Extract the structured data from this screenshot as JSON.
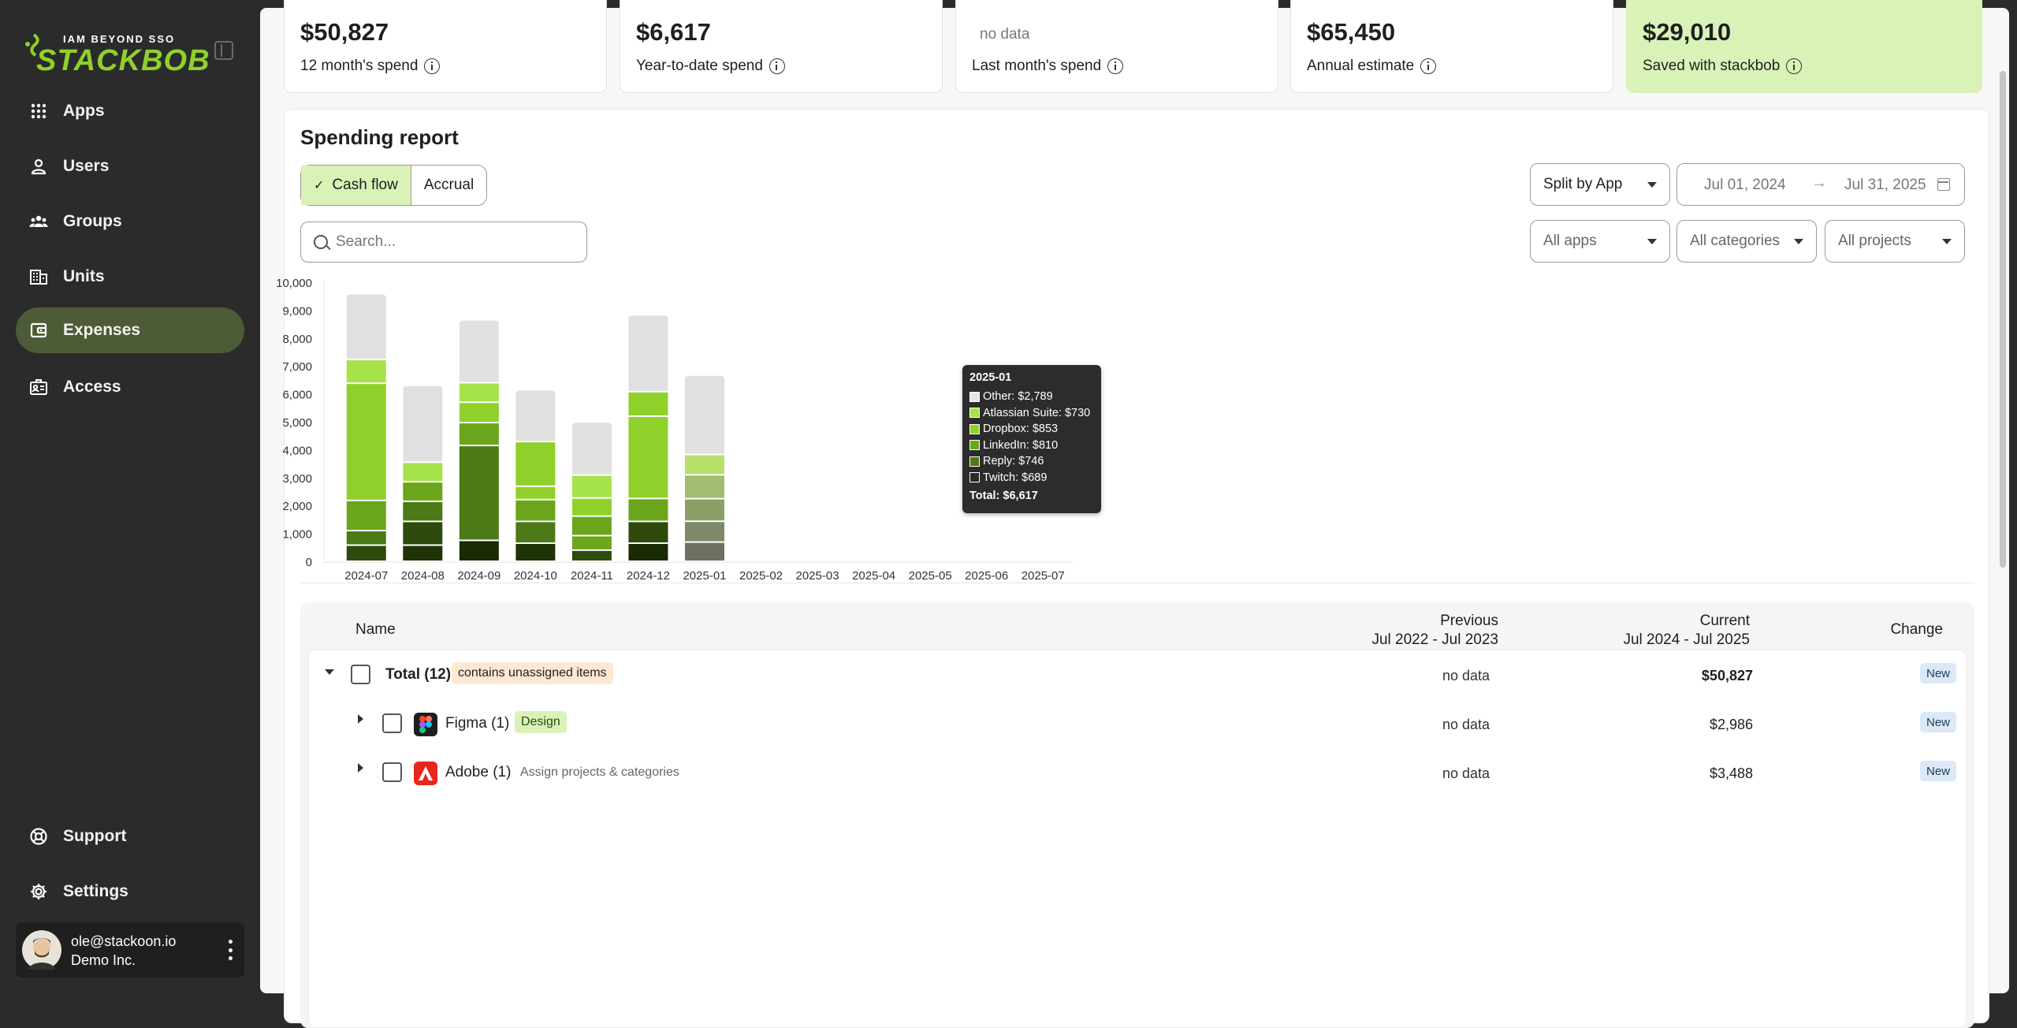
{
  "brand": {
    "tagline": "IAM BEYOND SSO",
    "name": "STACKBOB",
    "accent": "#8fd12a"
  },
  "nav": [
    {
      "label": "Apps",
      "icon": "apps-grid-icon"
    },
    {
      "label": "Users",
      "icon": "user-icon"
    },
    {
      "label": "Groups",
      "icon": "groups-icon"
    },
    {
      "label": "Units",
      "icon": "building-icon"
    },
    {
      "label": "Expenses",
      "icon": "wallet-icon",
      "active": true
    },
    {
      "label": "Access",
      "icon": "badge-icon"
    }
  ],
  "nav_bottom": [
    {
      "label": "Support",
      "icon": "lifebuoy-icon"
    },
    {
      "label": "Settings",
      "icon": "gear-icon"
    }
  ],
  "user": {
    "email": "ole@stackoon.io",
    "org": "Demo Inc."
  },
  "stats": [
    {
      "value": "$50,827",
      "label": "12 month's spend"
    },
    {
      "value": "$6,617",
      "label": "Year-to-date spend"
    },
    {
      "value": "no data",
      "label": "Last month's spend"
    },
    {
      "value": "$65,450",
      "label": "Annual estimate"
    },
    {
      "value": "$29,010",
      "label": "Saved with stackbob"
    }
  ],
  "report": {
    "title": "Spending report",
    "toggle": {
      "cashflow": "Cash flow",
      "accrual": "Accrual"
    },
    "search_placeholder": "Search...",
    "split": "Split by App",
    "date_from": "Jul 01, 2024",
    "date_to": "Jul 31, 2025",
    "filters": {
      "apps": "All apps",
      "categories": "All categories",
      "projects": "All projects"
    }
  },
  "chart_data": {
    "type": "bar",
    "stacked": true,
    "categories": [
      "2024-07",
      "2024-08",
      "2024-09",
      "2024-10",
      "2024-11",
      "2024-12",
      "2025-01",
      "2025-02",
      "2025-03",
      "2025-04",
      "2025-05",
      "2025-06",
      "2025-07"
    ],
    "ylim": [
      0,
      10000
    ],
    "yticks": [
      "0",
      "1,000",
      "2,000",
      "3,000",
      "4,000",
      "5,000",
      "6,000",
      "7,000",
      "8,000",
      "9,000",
      "10,000"
    ],
    "bars": [
      [
        {
          "v": 580,
          "c": "#2e4a0c"
        },
        {
          "v": 520,
          "c": "#4b7a16"
        },
        {
          "v": 1080,
          "c": "#6aa51c"
        },
        {
          "v": 4200,
          "c": "#8fd12a"
        },
        {
          "v": 850,
          "c": "#a6e24a"
        },
        {
          "v": 2300,
          "c": "#e0e0e0"
        }
      ],
      [
        {
          "v": 580,
          "c": "#1f3306"
        },
        {
          "v": 850,
          "c": "#2e4a0c"
        },
        {
          "v": 720,
          "c": "#4b7a16"
        },
        {
          "v": 700,
          "c": "#6aa51c"
        },
        {
          "v": 700,
          "c": "#a6e24a"
        },
        {
          "v": 2700,
          "c": "#e0e0e0"
        }
      ],
      [
        {
          "v": 750,
          "c": "#1a2a04"
        },
        {
          "v": 3400,
          "c": "#4b7a16"
        },
        {
          "v": 820,
          "c": "#6aa51c"
        },
        {
          "v": 730,
          "c": "#8fd12a"
        },
        {
          "v": 700,
          "c": "#a6e24a"
        },
        {
          "v": 2200,
          "c": "#e0e0e0"
        }
      ],
      [
        {
          "v": 650,
          "c": "#1f3306"
        },
        {
          "v": 780,
          "c": "#4b7a16"
        },
        {
          "v": 780,
          "c": "#6aa51c"
        },
        {
          "v": 480,
          "c": "#8fd12a"
        },
        {
          "v": 1600,
          "c": "#8fd12a"
        },
        {
          "v": 1800,
          "c": "#e0e0e0"
        }
      ],
      [
        {
          "v": 400,
          "c": "#2e4a0c"
        },
        {
          "v": 520,
          "c": "#6aa51c"
        },
        {
          "v": 700,
          "c": "#6aa51c"
        },
        {
          "v": 650,
          "c": "#8fd12a"
        },
        {
          "v": 820,
          "c": "#a6e24a"
        },
        {
          "v": 1850,
          "c": "#e0e0e0"
        }
      ],
      [
        {
          "v": 650,
          "c": "#1a2a04"
        },
        {
          "v": 780,
          "c": "#2e4a0c"
        },
        {
          "v": 820,
          "c": "#6aa51c"
        },
        {
          "v": 2950,
          "c": "#8fd12a"
        },
        {
          "v": 880,
          "c": "#8fd12a"
        },
        {
          "v": 2700,
          "c": "#e0e0e0"
        }
      ],
      [
        {
          "v": 689,
          "c": "#6e7060"
        },
        {
          "v": 746,
          "c": "#7d8a6a"
        },
        {
          "v": 810,
          "c": "#8ca066"
        },
        {
          "v": 853,
          "c": "#a0bd70"
        },
        {
          "v": 730,
          "c": "#b6e06a"
        },
        {
          "v": 2789,
          "c": "#e0e0e0"
        }
      ],
      [],
      [],
      [],
      [],
      [],
      []
    ]
  },
  "tooltip": {
    "title": "2025-01",
    "rows": [
      {
        "label": "Other: $2,789",
        "color": "#e6e6e6"
      },
      {
        "label": "Atlassian Suite: $730",
        "color": "#a6e24a"
      },
      {
        "label": "Dropbox: $853",
        "color": "#8fd12a"
      },
      {
        "label": "LinkedIn: $810",
        "color": "#6aa51c"
      },
      {
        "label": "Reply: $746",
        "color": "#4b7a16"
      },
      {
        "label": "Twitch: $689",
        "color": "#2a2a2a"
      }
    ],
    "total": "Total: $6,617"
  },
  "table": {
    "headers": {
      "name": "Name",
      "previous": "Previous",
      "previous_range": "Jul 2022 - Jul 2023",
      "current": "Current",
      "current_range": "Jul 2024 - Jul 2025",
      "change": "Change"
    },
    "rows": [
      {
        "name": "Total (12)",
        "badge": "contains unassigned items",
        "previous": "no data",
        "current": "$50,827",
        "change": "New"
      },
      {
        "name": "Figma (1)",
        "badge": "Design",
        "previous": "no data",
        "current": "$2,986",
        "change": "New"
      },
      {
        "name": "Adobe (1)",
        "hint": "Assign projects & categories",
        "previous": "no data",
        "current": "$3,488",
        "change": "New"
      }
    ]
  }
}
